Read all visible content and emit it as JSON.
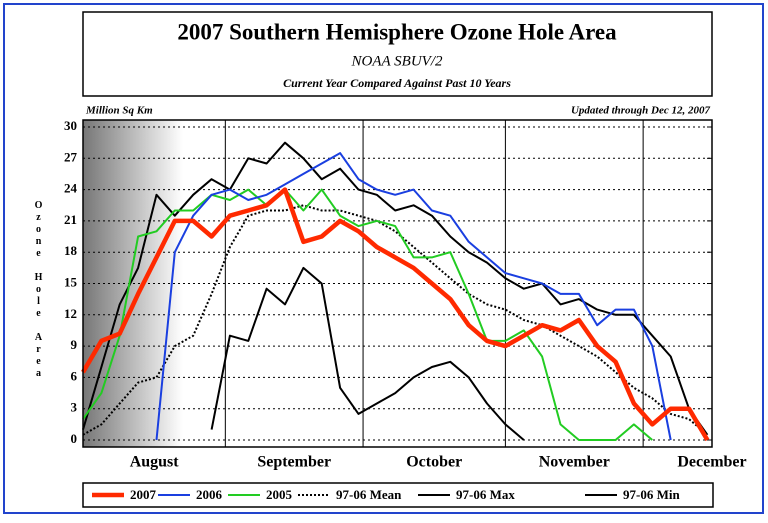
{
  "chart_data": {
    "type": "line",
    "title": "2007 Southern Hemisphere Ozone Hole Area",
    "subtitle": "NOAA SBUV/2",
    "caption": "Current Year Compared Against Past 10 Years",
    "units_label": "Million Sq Km",
    "updated": "Updated through Dec 12, 2007",
    "ylabel": "Ozone Hole Area",
    "xlim": [
      0,
      137
    ],
    "xticks": [
      {
        "value": 15.5,
        "label": "August"
      },
      {
        "value": 46,
        "label": "September"
      },
      {
        "value": 76.5,
        "label": "October"
      },
      {
        "value": 107,
        "label": "November"
      },
      {
        "value": 137,
        "label": "December"
      }
    ],
    "xgrid": [
      31,
      61,
      92,
      122
    ],
    "ylim": [
      0,
      30
    ],
    "yticks": [
      0,
      3,
      6,
      9,
      12,
      15,
      18,
      21,
      24,
      27,
      30
    ],
    "grid": true,
    "x": [
      0,
      4,
      8,
      12,
      16,
      20,
      24,
      28,
      32,
      36,
      40,
      44,
      48,
      52,
      56,
      60,
      64,
      68,
      72,
      76,
      80,
      84,
      88,
      92,
      96,
      100,
      104,
      108,
      112,
      116,
      120,
      124,
      128,
      132,
      136
    ],
    "series": [
      {
        "name": "2007",
        "color": "#ff2a00",
        "width": 4.5,
        "style": "solid",
        "values": [
          6.5,
          9.5,
          10.2,
          14,
          17.5,
          21,
          21,
          19.5,
          21.5,
          22,
          22.5,
          24,
          19,
          19.5,
          21,
          20,
          18.5,
          17.5,
          16.5,
          15,
          13.5,
          11,
          9.5,
          9,
          10,
          11,
          10.5,
          11.5,
          9,
          7.5,
          3.5,
          1.5,
          3,
          3,
          0
        ]
      },
      {
        "name": "2006",
        "color": "#1a3fe0",
        "width": 2,
        "style": "solid",
        "values": [
          null,
          null,
          null,
          null,
          0,
          18,
          21.5,
          23.5,
          24,
          23,
          23.5,
          24.5,
          25.5,
          26.5,
          27.5,
          25,
          24,
          23.5,
          24,
          22,
          21.5,
          19,
          17.5,
          16,
          15.5,
          15,
          14,
          14,
          11,
          12.5,
          12.5,
          9,
          0,
          null,
          null
        ]
      },
      {
        "name": "2005",
        "color": "#22cc22",
        "width": 2,
        "style": "solid",
        "values": [
          2,
          4.5,
          10,
          19.5,
          20,
          22,
          22,
          23.5,
          23,
          24,
          22.5,
          24,
          22,
          24,
          21.5,
          20.5,
          21,
          20.5,
          17.5,
          17.5,
          18,
          14,
          9.5,
          9.5,
          10.5,
          8,
          1.5,
          0,
          0,
          0,
          1.5,
          0,
          null,
          null,
          null
        ]
      },
      {
        "name": "97-06 Mean",
        "color": "#000000",
        "width": 2,
        "style": "dotted",
        "values": [
          0.5,
          1.5,
          3.5,
          5.5,
          6,
          9,
          10,
          14,
          18.5,
          21.5,
          22,
          22,
          22.5,
          22,
          22,
          21.5,
          21,
          20,
          18.5,
          17,
          15.5,
          14,
          13,
          12.5,
          11.5,
          11,
          10,
          9,
          8,
          6.5,
          5,
          4,
          2.5,
          2,
          0.5
        ]
      },
      {
        "name": "97-06 Max",
        "color": "#000000",
        "width": 2,
        "style": "solid",
        "values": [
          1,
          7,
          13,
          16.5,
          23.5,
          21.5,
          23.5,
          25,
          24,
          27,
          26.5,
          28.5,
          27,
          25,
          26,
          24,
          23.5,
          22,
          22.5,
          21.5,
          19.5,
          18,
          17,
          15.5,
          14.5,
          15,
          13,
          13.5,
          12.5,
          12,
          12,
          10,
          8,
          3,
          0.5
        ]
      },
      {
        "name": "97-06 Min",
        "color": "#000000",
        "width": 2,
        "style": "solid",
        "values": [
          null,
          null,
          null,
          null,
          null,
          null,
          null,
          1,
          10,
          9.5,
          14.5,
          13,
          16.5,
          15,
          5,
          2.5,
          3.5,
          4.5,
          6,
          7,
          7.5,
          6,
          3.5,
          1.5,
          0,
          null,
          null,
          null,
          null,
          null,
          null,
          null,
          null,
          null,
          null
        ]
      }
    ]
  }
}
